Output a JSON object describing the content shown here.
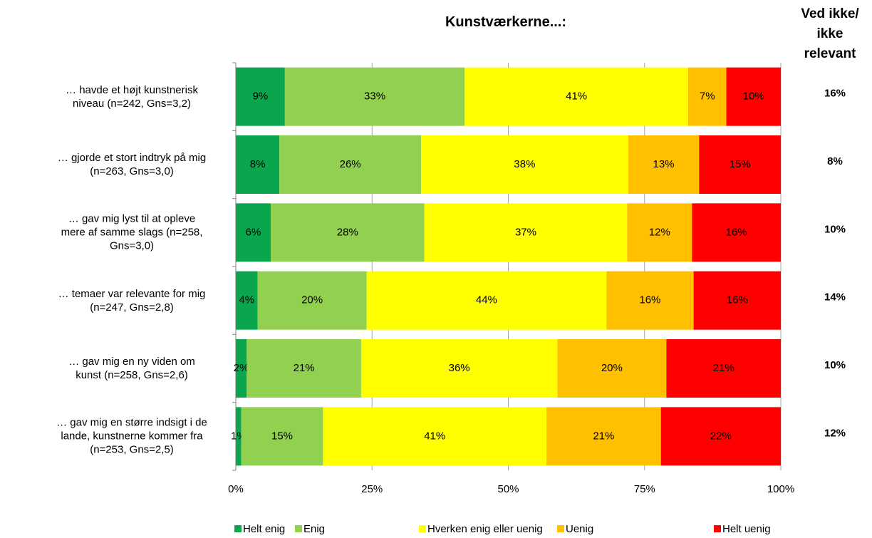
{
  "chart_data": {
    "type": "stacked_barh",
    "title": "Kunstværkerne...:",
    "categories": [
      "… havde et højt kunstnerisk\nniveau  (n=242, Gns=3,2)",
      "… gjorde et stort indtryk på mig\n(n=263, Gns=3,0)",
      "… gav mig lyst til at opleve\nmere af samme slags (n=258,\nGns=3,0)",
      "… temaer var relevante  for mig\n(n=247, Gns=2,8)",
      "… gav mig en ny viden om\nkunst (n=258, Gns=2,6)",
      "… gav mig en større indsigt i de\nlande, kunstnerne kommer fra\n(n=253, Gns=2,5)"
    ],
    "series": [
      {
        "name": "Helt enig",
        "color": "#0aa64e",
        "values": [
          9,
          8,
          6.4,
          4,
          2,
          1
        ],
        "value_labels": [
          "9%",
          "8%",
          "6%",
          "4%",
          "2%",
          "1%"
        ]
      },
      {
        "name": "Enig",
        "color": "#92d050",
        "values": [
          33,
          26,
          28.2,
          20,
          21,
          15
        ],
        "value_labels": [
          "33%",
          "26%",
          "28%",
          "20%",
          "21%",
          "15%"
        ]
      },
      {
        "name": "Hverken enig eller uenig",
        "color": "#ffff00",
        "values": [
          41,
          38,
          37.2,
          44,
          36,
          41
        ],
        "value_labels": [
          "41%",
          "38%",
          "37%",
          "44%",
          "36%",
          "41%"
        ]
      },
      {
        "name": "Uenig",
        "color": "#ffc000",
        "values": [
          7,
          13,
          11.9,
          16,
          20,
          21
        ],
        "value_labels": [
          "7%",
          "13%",
          "12%",
          "16%",
          "20%",
          "21%"
        ]
      },
      {
        "name": "Helt uenig",
        "color": "#ff0000",
        "values": [
          10,
          15,
          16.3,
          16,
          21,
          22
        ],
        "value_labels": [
          "10%",
          "15%",
          "16%",
          "16%",
          "21%",
          "22%"
        ]
      }
    ],
    "xlim": [
      0,
      100
    ],
    "xticks": [
      {
        "value": 0,
        "label": "0%"
      },
      {
        "value": 25,
        "label": "25%"
      },
      {
        "value": 50,
        "label": "50%"
      },
      {
        "value": 75,
        "label": "75%"
      },
      {
        "value": 100,
        "label": "100%"
      }
    ],
    "grid": true,
    "legend": "bottom",
    "side_title": "Ved ikke/\nikke\nrelevant",
    "side_labels": [
      "16%",
      "8%",
      "10%",
      "14%",
      "10%",
      "12%"
    ]
  }
}
